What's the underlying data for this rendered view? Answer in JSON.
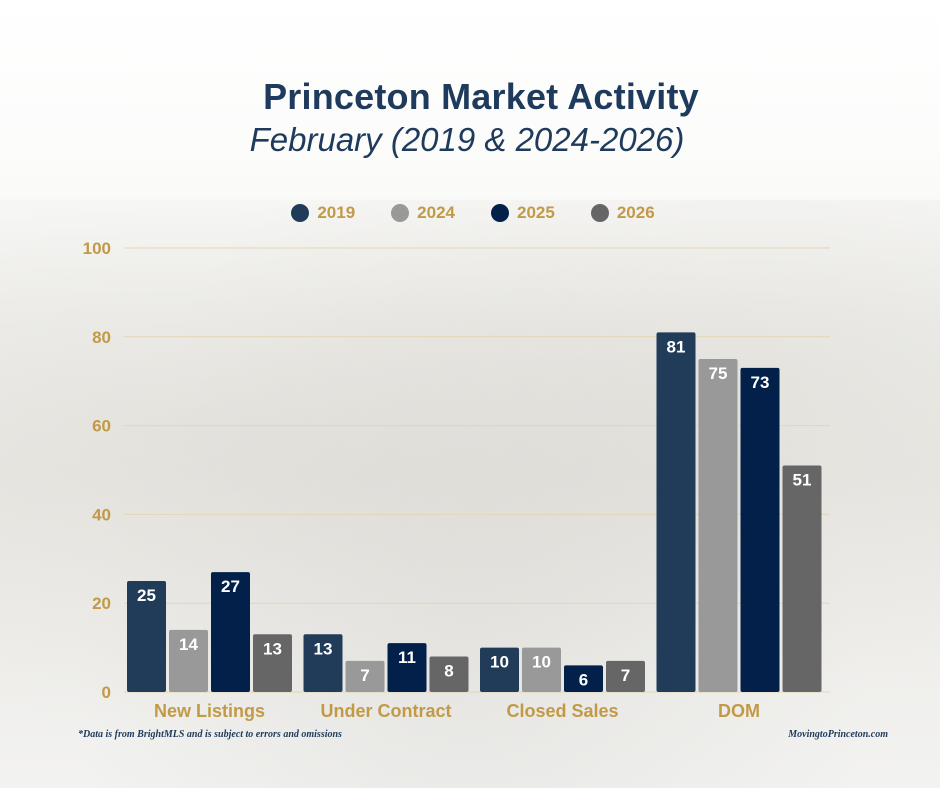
{
  "header": {
    "title": "Princeton Market Activity",
    "subtitle": "February (2019 & 2024-2026)"
  },
  "colors": {
    "2019": "#213c59",
    "2024": "#999999",
    "2025": "#02204a",
    "2026": "#666666",
    "axis_text": "#c29a47",
    "title": "#1e3a5c",
    "grid": "#e3d6b4"
  },
  "chart_data": {
    "type": "bar",
    "title": "Princeton Market Activity",
    "subtitle": "February (2019 & 2024-2026)",
    "xlabel": "",
    "ylabel": "",
    "ylim": [
      0,
      100
    ],
    "yticks": [
      0,
      20,
      40,
      60,
      80,
      100
    ],
    "grid": true,
    "legend_position": "top-center",
    "categories": [
      "New Listings",
      "Under Contract",
      "Closed Sales",
      "DOM"
    ],
    "series": [
      {
        "name": "2019",
        "color": "#213c59",
        "values": [
          25,
          13,
          10,
          81
        ]
      },
      {
        "name": "2024",
        "color": "#999999",
        "values": [
          14,
          7,
          10,
          75
        ]
      },
      {
        "name": "2025",
        "color": "#02204a",
        "values": [
          27,
          11,
          6,
          73
        ]
      },
      {
        "name": "2026",
        "color": "#666666",
        "values": [
          13,
          8,
          7,
          51
        ]
      }
    ]
  },
  "footer": {
    "note": "*Data is from BrightMLS and is subject to errors and omissions",
    "site": "MovingtoPrinceton.com"
  }
}
